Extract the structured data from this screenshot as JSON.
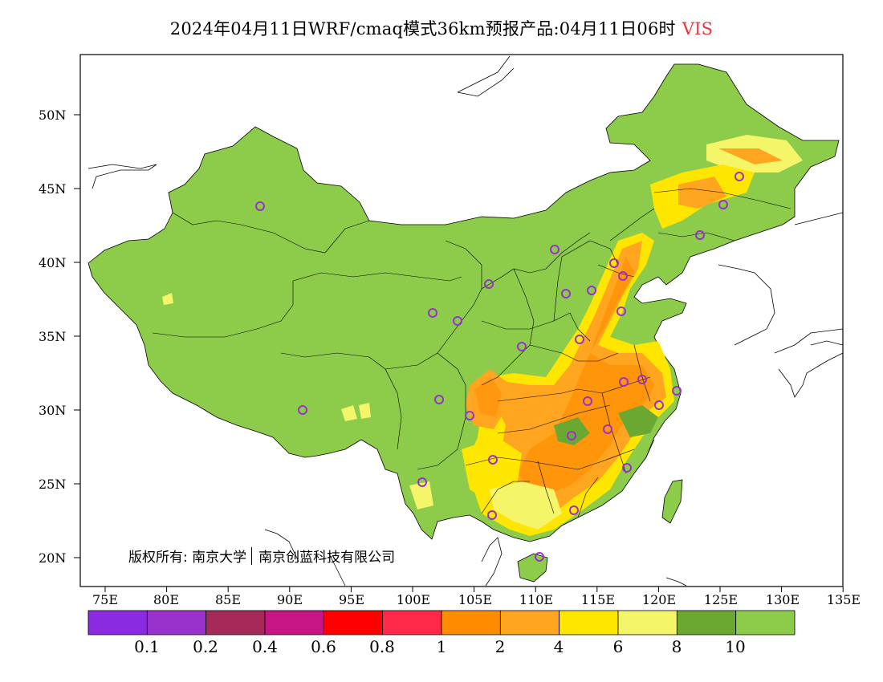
{
  "title": {
    "main": "2024年04月11日WRF/cmaq模式36km预报产品:04月11日06时",
    "variable": "VIS",
    "variable_color": "#e0383e"
  },
  "axes": {
    "y_labels": [
      "50N",
      "45N",
      "40N",
      "35N",
      "30N",
      "25N",
      "20N"
    ],
    "x_labels": [
      "75E",
      "80E",
      "85E",
      "90E",
      "95E",
      "100E",
      "105E",
      "110E",
      "115E",
      "120E",
      "125E",
      "130E",
      "135E"
    ]
  },
  "copyright": {
    "left": "版权所有: 南京大学",
    "right": "南京创蓝科技有限公司"
  },
  "colorbar": {
    "colors": [
      "#8a2be2",
      "#9932cc",
      "#a52a5a",
      "#c71585",
      "#ff0000",
      "#ff2a4a",
      "#ff8c00",
      "#ffa520",
      "#ffe600",
      "#f5f56a",
      "#6aa832",
      "#8ccc4a"
    ],
    "tick_labels": [
      "0.1",
      "0.2",
      "0.4",
      "0.6",
      "0.8",
      "1",
      "2",
      "4",
      "6",
      "8",
      "10"
    ]
  },
  "map": {
    "land_color": "#8ccc4a",
    "dark_green": "#6aa832",
    "yellow": "#f5f56a",
    "gold": "#ffe600",
    "orange_light": "#ffa520",
    "orange": "#ff8c00",
    "station_color": "#9932cc"
  }
}
